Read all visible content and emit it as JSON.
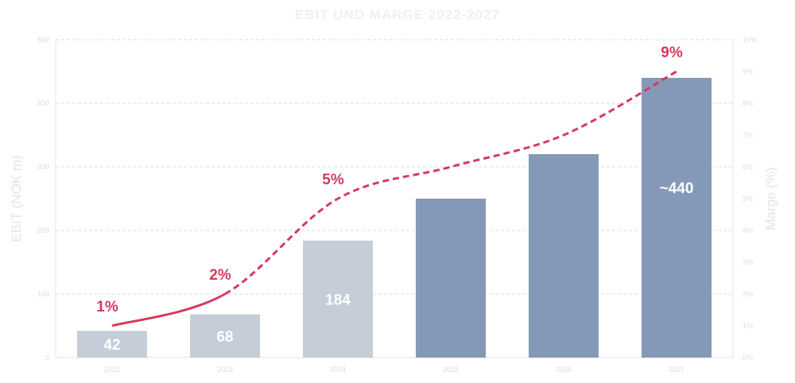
{
  "chart_data": {
    "type": "bar",
    "title": "EBIT UND MARGE 2022-2027",
    "categories": [
      "2022",
      "2023",
      "2024",
      "2025",
      "2026",
      "2027"
    ],
    "series": [
      {
        "name": "EBIT (NOK m)",
        "type": "bar",
        "axis": "left",
        "values": [
          42,
          68,
          184,
          250,
          320,
          440
        ],
        "data_labels": [
          "42",
          "68",
          "184",
          "",
          "",
          "~440"
        ],
        "colors": [
          "#c5cdd8",
          "#c5cdd8",
          "#c5cdd8",
          "#8499b8",
          "#8499b8",
          "#8499b8"
        ]
      },
      {
        "name": "Marge (%)",
        "type": "line",
        "axis": "right",
        "values": [
          1,
          2,
          5,
          6,
          7,
          9
        ],
        "data_labels": [
          "1%",
          "2%",
          "5%",
          "",
          "",
          "9%"
        ],
        "color": "#d63a5e",
        "style": "solid for 2022-2023, dashed after"
      }
    ],
    "ylabel": "EBIT (NOK m)",
    "ylim": [
      0,
      500
    ],
    "yticks": [
      "0",
      "100",
      "200",
      "300",
      "400",
      "500"
    ],
    "y2label": "Marge (%)",
    "y2lim": [
      0,
      10
    ],
    "y2ticks": [
      "0%",
      "1%",
      "2%",
      "3%",
      "4%",
      "5%",
      "6%",
      "7%",
      "8%",
      "9%",
      "10%"
    ],
    "grid": true,
    "legend": "none"
  }
}
